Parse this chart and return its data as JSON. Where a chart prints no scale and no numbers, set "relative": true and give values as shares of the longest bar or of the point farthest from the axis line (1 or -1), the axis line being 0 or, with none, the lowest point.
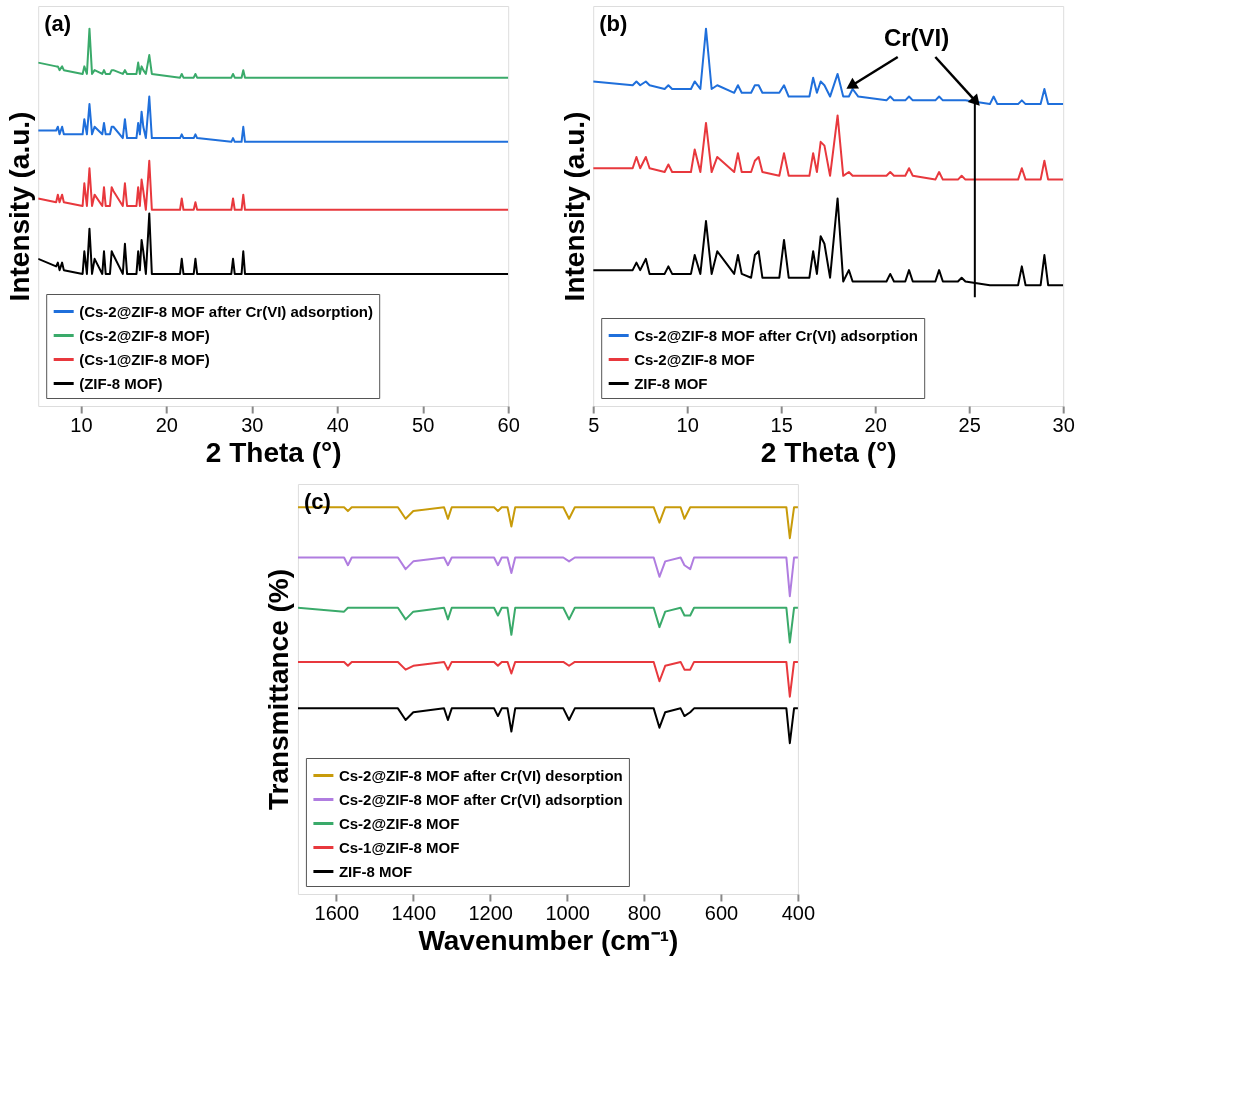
{
  "chart_data": [
    {
      "type": "line",
      "relative": true,
      "xlabel": "2 Theta (°)",
      "ylabel": "Intensity (a.u.)",
      "xlim": [
        5,
        60
      ],
      "xticks": [
        10,
        20,
        30,
        40,
        50,
        60
      ],
      "grid": false,
      "legend": "bottom left",
      "annotations": [
        "(a)"
      ],
      "x": [
        5,
        7.1,
        7.3,
        7.5,
        7.8,
        8.0,
        10.2,
        10.4,
        10.7,
        11.0,
        11.3,
        11.6,
        12.5,
        12.7,
        12.9,
        13.4,
        13.6,
        13.8,
        14.9,
        15.15,
        15.4,
        16.5,
        16.7,
        16.9,
        17.1,
        17.3,
        17.6,
        18.0,
        18.3,
        21.6,
        21.8,
        22.0,
        23.2,
        23.4,
        23.6,
        27.6,
        27.8,
        28.0,
        28.8,
        29.0,
        29.2,
        30,
        35,
        40,
        50,
        60
      ],
      "series": [
        {
          "name": "(Cs-2@ZIF-8 MOF after Cr(VI) adsorption)",
          "color": "#1f6fdb",
          "values": [
            0.73,
            0.73,
            0.74,
            0.72,
            0.74,
            0.72,
            0.72,
            0.76,
            0.72,
            0.8,
            0.72,
            0.74,
            0.72,
            0.75,
            0.72,
            0.72,
            0.74,
            0.74,
            0.71,
            0.76,
            0.71,
            0.71,
            0.75,
            0.72,
            0.78,
            0.74,
            0.71,
            0.82,
            0.71,
            0.71,
            0.72,
            0.71,
            0.71,
            0.72,
            0.71,
            0.7,
            0.71,
            0.7,
            0.7,
            0.74,
            0.7,
            0.7,
            0.7,
            0.7,
            0.7,
            0.7
          ]
        },
        {
          "name": "(Cs-2@ZIF-8 MOF)",
          "color": "#3aaa6a",
          "values": [
            0.91,
            0.9,
            0.9,
            0.89,
            0.9,
            0.89,
            0.88,
            0.9,
            0.88,
            1.0,
            0.88,
            0.89,
            0.88,
            0.89,
            0.88,
            0.88,
            0.89,
            0.89,
            0.88,
            0.89,
            0.88,
            0.88,
            0.91,
            0.88,
            0.9,
            0.89,
            0.88,
            0.93,
            0.88,
            0.87,
            0.88,
            0.87,
            0.87,
            0.88,
            0.87,
            0.87,
            0.88,
            0.87,
            0.87,
            0.89,
            0.87,
            0.87,
            0.87,
            0.87,
            0.87,
            0.87
          ]
        },
        {
          "name": "(Cs-1@ZIF-8 MOF)",
          "color": "#e8383d",
          "values": [
            0.55,
            0.54,
            0.56,
            0.54,
            0.56,
            0.54,
            0.53,
            0.59,
            0.53,
            0.63,
            0.53,
            0.56,
            0.53,
            0.58,
            0.53,
            0.53,
            0.58,
            0.57,
            0.53,
            0.59,
            0.53,
            0.53,
            0.58,
            0.53,
            0.6,
            0.57,
            0.52,
            0.65,
            0.52,
            0.52,
            0.55,
            0.52,
            0.52,
            0.54,
            0.52,
            0.52,
            0.55,
            0.52,
            0.52,
            0.56,
            0.52,
            0.52,
            0.52,
            0.52,
            0.52,
            0.52
          ]
        },
        {
          "name": "(ZIF-8 MOF)",
          "color": "#000000",
          "values": [
            0.39,
            0.37,
            0.38,
            0.36,
            0.38,
            0.36,
            0.35,
            0.41,
            0.35,
            0.47,
            0.35,
            0.39,
            0.35,
            0.41,
            0.35,
            0.35,
            0.41,
            0.4,
            0.35,
            0.43,
            0.35,
            0.35,
            0.41,
            0.36,
            0.44,
            0.41,
            0.35,
            0.51,
            0.35,
            0.35,
            0.39,
            0.35,
            0.35,
            0.39,
            0.35,
            0.35,
            0.39,
            0.35,
            0.35,
            0.41,
            0.35,
            0.35,
            0.35,
            0.35,
            0.35,
            0.35
          ]
        }
      ]
    },
    {
      "type": "line",
      "relative": true,
      "xlabel": "2 Theta (°)",
      "ylabel": "Intensity (a.u.)",
      "xlim": [
        5,
        30
      ],
      "xticks": [
        5,
        10,
        15,
        20,
        25,
        30
      ],
      "grid": false,
      "legend": "bottom left",
      "annotations": [
        "(b)",
        {
          "text": "Cr(VI)",
          "x": 18.8,
          "y": 0.84
        }
      ],
      "ref_lines": [
        {
          "axis": "x",
          "value": 25.3,
          "color": "#000000"
        }
      ],
      "x": [
        5,
        7.1,
        7.3,
        7.5,
        7.8,
        8.0,
        8.8,
        9.0,
        9.2,
        10.2,
        10.4,
        10.7,
        11.0,
        11.3,
        11.6,
        12.5,
        12.7,
        12.9,
        13.4,
        13.6,
        13.8,
        14.0,
        14.9,
        15.15,
        15.4,
        16.5,
        16.7,
        16.9,
        17.1,
        17.3,
        17.6,
        18.0,
        18.3,
        18.6,
        18.8,
        19.1,
        20.6,
        20.8,
        21.0,
        21.6,
        21.8,
        22.0,
        23.2,
        23.4,
        23.6,
        24.4,
        24.6,
        24.8,
        26.1,
        26.3,
        26.5,
        27.6,
        27.8,
        28.0,
        28.8,
        29.0,
        29.2,
        30
      ],
      "series": [
        {
          "name": "Cs-2@ZIF-8 MOF after Cr(VI) adsorption",
          "color": "#1f6fdb",
          "values": [
            0.86,
            0.85,
            0.86,
            0.85,
            0.86,
            0.85,
            0.84,
            0.85,
            0.84,
            0.84,
            0.86,
            0.84,
            1.0,
            0.84,
            0.85,
            0.83,
            0.85,
            0.83,
            0.83,
            0.85,
            0.85,
            0.83,
            0.83,
            0.85,
            0.82,
            0.82,
            0.87,
            0.83,
            0.86,
            0.85,
            0.82,
            0.88,
            0.82,
            0.82,
            0.84,
            0.82,
            0.81,
            0.82,
            0.81,
            0.81,
            0.82,
            0.81,
            0.81,
            0.82,
            0.81,
            0.81,
            0.81,
            0.81,
            0.8,
            0.82,
            0.8,
            0.8,
            0.81,
            0.8,
            0.8,
            0.84,
            0.8,
            0.8
          ]
        },
        {
          "name": "Cs-2@ZIF-8 MOF",
          "color": "#e8383d",
          "values": [
            0.63,
            0.63,
            0.66,
            0.63,
            0.66,
            0.63,
            0.62,
            0.64,
            0.62,
            0.62,
            0.68,
            0.62,
            0.75,
            0.62,
            0.66,
            0.62,
            0.67,
            0.62,
            0.62,
            0.65,
            0.66,
            0.62,
            0.61,
            0.67,
            0.61,
            0.61,
            0.67,
            0.62,
            0.7,
            0.69,
            0.61,
            0.77,
            0.61,
            0.62,
            0.61,
            0.61,
            0.61,
            0.62,
            0.61,
            0.61,
            0.63,
            0.61,
            0.6,
            0.62,
            0.6,
            0.6,
            0.61,
            0.6,
            0.6,
            0.6,
            0.6,
            0.6,
            0.63,
            0.6,
            0.6,
            0.65,
            0.6,
            0.6
          ]
        },
        {
          "name": "ZIF-8 MOF",
          "color": "#000000",
          "values": [
            0.36,
            0.36,
            0.38,
            0.36,
            0.39,
            0.35,
            0.35,
            0.37,
            0.35,
            0.35,
            0.4,
            0.35,
            0.49,
            0.35,
            0.41,
            0.35,
            0.4,
            0.35,
            0.34,
            0.4,
            0.41,
            0.34,
            0.34,
            0.44,
            0.34,
            0.34,
            0.41,
            0.35,
            0.45,
            0.43,
            0.34,
            0.55,
            0.33,
            0.36,
            0.33,
            0.33,
            0.33,
            0.35,
            0.33,
            0.33,
            0.36,
            0.33,
            0.33,
            0.36,
            0.33,
            0.33,
            0.34,
            0.33,
            0.32,
            0.32,
            0.32,
            0.32,
            0.37,
            0.32,
            0.32,
            0.4,
            0.32,
            0.32
          ]
        }
      ]
    },
    {
      "type": "line",
      "relative": true,
      "xlabel": "Wavenumber (cm⁻¹)",
      "ylabel": "Transmittance (%)",
      "xlim": [
        1700,
        400
      ],
      "xticks": [
        1600,
        1400,
        1200,
        1000,
        800,
        600,
        400
      ],
      "grid": false,
      "legend": "bottom left",
      "annotations": [
        "(c)"
      ],
      "x": [
        1700,
        1580,
        1570,
        1560,
        1440,
        1420,
        1400,
        1320,
        1310,
        1300,
        1190,
        1180,
        1170,
        1155,
        1145,
        1135,
        1010,
        995,
        980,
        775,
        760,
        745,
        705,
        695,
        680,
        670,
        430,
        421,
        410,
        400
      ],
      "series": [
        {
          "name": "Cs-2@ZIF-8 MOF after Cr(VI) desorption",
          "color": "#c89b0a",
          "values": [
            1.0,
            1.0,
            0.99,
            1.0,
            1.0,
            0.97,
            0.99,
            1.0,
            0.97,
            1.0,
            1.0,
            0.99,
            1.0,
            1.0,
            0.95,
            1.0,
            1.0,
            0.97,
            1.0,
            1.0,
            0.96,
            1.0,
            1.0,
            0.97,
            1.0,
            1.0,
            1.0,
            0.92,
            1.0,
            1.0
          ]
        },
        {
          "name": "Cs-2@ZIF-8 MOF after Cr(VI) adsorption",
          "color": "#b07de0",
          "values": [
            0.87,
            0.87,
            0.85,
            0.87,
            0.87,
            0.84,
            0.86,
            0.87,
            0.85,
            0.87,
            0.87,
            0.85,
            0.87,
            0.87,
            0.83,
            0.87,
            0.87,
            0.86,
            0.87,
            0.87,
            0.82,
            0.86,
            0.87,
            0.85,
            0.84,
            0.87,
            0.87,
            0.77,
            0.87,
            0.87
          ]
        },
        {
          "name": "Cs-2@ZIF-8 MOF",
          "color": "#3aaa6a",
          "values": [
            0.74,
            0.73,
            0.74,
            0.74,
            0.74,
            0.71,
            0.73,
            0.74,
            0.71,
            0.74,
            0.74,
            0.72,
            0.74,
            0.74,
            0.67,
            0.74,
            0.74,
            0.71,
            0.74,
            0.74,
            0.69,
            0.73,
            0.74,
            0.72,
            0.72,
            0.74,
            0.74,
            0.65,
            0.74,
            0.74
          ]
        },
        {
          "name": "Cs-1@ZIF-8 MOF",
          "color": "#e8383d",
          "values": [
            0.6,
            0.6,
            0.59,
            0.6,
            0.6,
            0.58,
            0.59,
            0.6,
            0.58,
            0.6,
            0.6,
            0.59,
            0.6,
            0.6,
            0.57,
            0.6,
            0.6,
            0.59,
            0.6,
            0.6,
            0.55,
            0.59,
            0.6,
            0.58,
            0.58,
            0.6,
            0.6,
            0.51,
            0.6,
            0.6
          ]
        },
        {
          "name": "ZIF-8 MOF",
          "color": "#000000",
          "values": [
            0.48,
            0.48,
            0.48,
            0.48,
            0.48,
            0.45,
            0.47,
            0.48,
            0.45,
            0.48,
            0.48,
            0.46,
            0.48,
            0.48,
            0.42,
            0.48,
            0.48,
            0.45,
            0.48,
            0.48,
            0.43,
            0.47,
            0.48,
            0.46,
            0.47,
            0.48,
            0.48,
            0.39,
            0.48,
            0.48
          ]
        }
      ]
    }
  ]
}
